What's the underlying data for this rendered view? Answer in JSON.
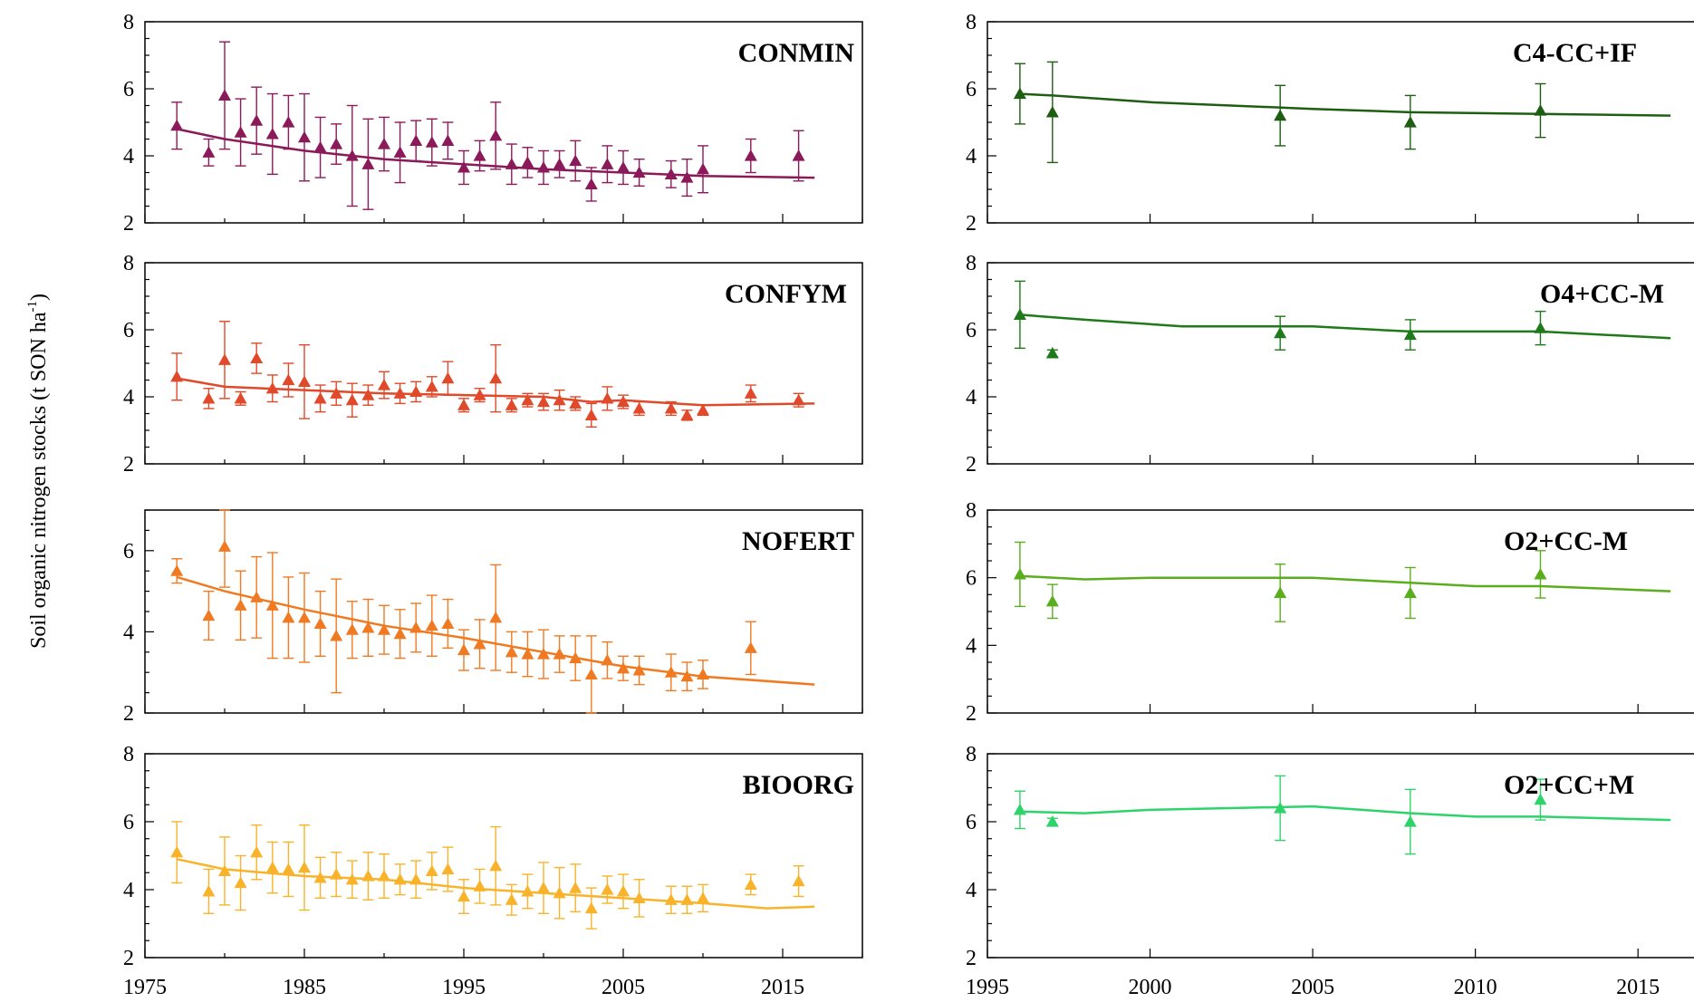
{
  "ylabel": "Soil organic nitrogen stocks (t SON ha",
  "ylabel_sup": "-1",
  "ylabel_close": ")",
  "chart_data": [
    {
      "type": "line",
      "title": "CONMIN",
      "color": "#8b1a5a",
      "xlim": [
        1975,
        2020
      ],
      "ylim": [
        2,
        8
      ],
      "yticks": [
        2,
        4,
        6,
        8
      ],
      "line": {
        "x": [
          1977,
          1980,
          1985,
          1990,
          1995,
          2000,
          2005,
          2010,
          2017
        ],
        "y": [
          4.8,
          4.5,
          4.15,
          3.9,
          3.75,
          3.6,
          3.5,
          3.4,
          3.35
        ]
      },
      "points": {
        "x": [
          1977,
          1979,
          1980,
          1981,
          1982,
          1983,
          1984,
          1985,
          1986,
          1987,
          1988,
          1989,
          1990,
          1991,
          1992,
          1993,
          1994,
          1995,
          1996,
          1997,
          1998,
          1999,
          2000,
          2001,
          2002,
          2003,
          2004,
          2005,
          2006,
          2008,
          2009,
          2010,
          2013,
          2016
        ],
        "y": [
          4.9,
          4.1,
          5.8,
          4.7,
          5.05,
          4.65,
          5.0,
          4.55,
          4.25,
          4.35,
          4.0,
          3.75,
          4.35,
          4.1,
          4.45,
          4.4,
          4.45,
          3.65,
          4.0,
          4.6,
          3.75,
          3.8,
          3.65,
          3.75,
          3.85,
          3.15,
          3.75,
          3.65,
          3.5,
          3.45,
          3.35,
          3.6,
          4.0,
          4.0
        ],
        "err": [
          0.7,
          0.4,
          1.6,
          1.0,
          1.0,
          1.2,
          0.8,
          1.3,
          0.9,
          0.6,
          1.5,
          1.35,
          0.8,
          0.9,
          0.6,
          0.7,
          0.55,
          0.5,
          0.45,
          1.0,
          0.6,
          0.45,
          0.5,
          0.4,
          0.6,
          0.5,
          0.55,
          0.5,
          0.4,
          0.4,
          0.55,
          0.7,
          0.5,
          0.75
        ]
      }
    },
    {
      "type": "line",
      "title": "CONFYM",
      "color": "#e04a2a",
      "xlim": [
        1975,
        2020
      ],
      "ylim": [
        2,
        8
      ],
      "yticks": [
        2,
        4,
        6,
        8
      ],
      "line": {
        "x": [
          1977,
          1980,
          1985,
          1990,
          1995,
          2000,
          2003,
          2005,
          2010,
          2017
        ],
        "y": [
          4.55,
          4.3,
          4.2,
          4.1,
          4.05,
          4.0,
          3.85,
          3.9,
          3.75,
          3.8
        ]
      },
      "points": {
        "x": [
          1977,
          1979,
          1980,
          1981,
          1982,
          1983,
          1984,
          1985,
          1986,
          1987,
          1988,
          1989,
          1990,
          1991,
          1992,
          1993,
          1994,
          1995,
          1996,
          1997,
          1998,
          1999,
          2000,
          2001,
          2002,
          2003,
          2004,
          2005,
          2006,
          2008,
          2009,
          2010,
          2013,
          2016
        ],
        "y": [
          4.6,
          3.95,
          5.1,
          3.95,
          5.15,
          4.25,
          4.5,
          4.45,
          3.95,
          4.1,
          3.9,
          4.05,
          4.35,
          4.1,
          4.15,
          4.3,
          4.55,
          3.75,
          4.05,
          4.55,
          3.75,
          3.9,
          3.85,
          3.9,
          3.8,
          3.45,
          3.95,
          3.85,
          3.65,
          3.65,
          3.45,
          3.6,
          4.1,
          3.9
        ],
        "err": [
          0.7,
          0.3,
          1.15,
          0.2,
          0.45,
          0.4,
          0.5,
          1.1,
          0.4,
          0.35,
          0.5,
          0.3,
          0.4,
          0.3,
          0.3,
          0.3,
          0.5,
          0.2,
          0.2,
          1.0,
          0.2,
          0.2,
          0.25,
          0.3,
          0.2,
          0.35,
          0.35,
          0.2,
          0.2,
          0.2,
          0.15,
          0.15,
          0.25,
          0.2
        ]
      }
    },
    {
      "type": "line",
      "title": "NOFERT",
      "color": "#f07a22",
      "xlim": [
        1975,
        2020
      ],
      "ylim": [
        2,
        7
      ],
      "yticks": [
        2,
        4,
        6
      ],
      "line": {
        "x": [
          1977,
          1980,
          1985,
          1990,
          1995,
          2000,
          2005,
          2010,
          2017
        ],
        "y": [
          5.35,
          5.0,
          4.55,
          4.15,
          3.85,
          3.5,
          3.15,
          2.9,
          2.7
        ]
      },
      "points": {
        "x": [
          1977,
          1979,
          1980,
          1981,
          1982,
          1983,
          1984,
          1985,
          1986,
          1987,
          1988,
          1989,
          1990,
          1991,
          1992,
          1993,
          1994,
          1995,
          1996,
          1997,
          1998,
          1999,
          2000,
          2001,
          2002,
          2003,
          2004,
          2005,
          2006,
          2008,
          2009,
          2010,
          2013
        ],
        "y": [
          5.5,
          4.4,
          6.1,
          4.65,
          4.85,
          4.65,
          4.35,
          4.35,
          4.2,
          3.9,
          4.05,
          4.1,
          4.05,
          3.95,
          4.1,
          4.15,
          4.2,
          3.55,
          3.7,
          4.35,
          3.5,
          3.45,
          3.45,
          3.45,
          3.35,
          2.95,
          3.3,
          3.1,
          3.05,
          3.0,
          2.9,
          2.95,
          3.6
        ],
        "err": [
          0.3,
          0.6,
          1.0,
          0.85,
          1.0,
          1.3,
          1.0,
          1.1,
          0.8,
          1.4,
          0.7,
          0.7,
          0.6,
          0.6,
          0.6,
          0.75,
          0.6,
          0.5,
          0.6,
          1.3,
          0.5,
          0.55,
          0.6,
          0.45,
          0.55,
          0.95,
          0.45,
          0.3,
          0.35,
          0.45,
          0.35,
          0.35,
          0.65
        ]
      }
    },
    {
      "type": "line",
      "title": "BIOORG",
      "color": "#f9b32a",
      "xlim": [
        1975,
        2020
      ],
      "ylim": [
        2,
        8
      ],
      "yticks": [
        2,
        4,
        6,
        8
      ],
      "line": {
        "x": [
          1977,
          1980,
          1985,
          1990,
          1995,
          2000,
          2005,
          2010,
          2014,
          2017
        ],
        "y": [
          4.9,
          4.6,
          4.4,
          4.3,
          4.05,
          3.9,
          3.75,
          3.6,
          3.45,
          3.5
        ]
      },
      "points": {
        "x": [
          1977,
          1979,
          1980,
          1981,
          1982,
          1983,
          1984,
          1985,
          1986,
          1987,
          1988,
          1989,
          1990,
          1991,
          1992,
          1993,
          1994,
          1995,
          1996,
          1997,
          1998,
          1999,
          2000,
          2001,
          2002,
          2003,
          2004,
          2005,
          2006,
          2008,
          2009,
          2010,
          2013,
          2016
        ],
        "y": [
          5.1,
          3.95,
          4.55,
          4.2,
          5.1,
          4.65,
          4.6,
          4.65,
          4.35,
          4.45,
          4.3,
          4.4,
          4.4,
          4.3,
          4.3,
          4.55,
          4.6,
          3.8,
          4.1,
          4.7,
          3.7,
          3.95,
          4.05,
          3.9,
          4.05,
          3.45,
          4.0,
          3.95,
          3.75,
          3.7,
          3.7,
          3.75,
          4.15,
          4.25
        ],
        "err": [
          0.9,
          0.65,
          1.0,
          0.8,
          0.8,
          0.75,
          0.8,
          1.25,
          0.6,
          0.65,
          0.55,
          0.7,
          0.65,
          0.45,
          0.55,
          0.55,
          0.65,
          0.5,
          0.5,
          1.15,
          0.45,
          0.5,
          0.75,
          0.75,
          0.7,
          0.6,
          0.4,
          0.5,
          0.55,
          0.4,
          0.4,
          0.4,
          0.3,
          0.45
        ]
      }
    },
    {
      "type": "line",
      "title": "C4-CC+IF",
      "color": "#1e5e12",
      "xlim": [
        1995,
        2017
      ],
      "ylim": [
        2,
        8
      ],
      "yticks": [
        2,
        4,
        6,
        8
      ],
      "line": {
        "x": [
          1996,
          1997,
          2000,
          2005,
          2008,
          2012,
          2016
        ],
        "y": [
          5.85,
          5.8,
          5.6,
          5.4,
          5.3,
          5.25,
          5.2
        ]
      },
      "points": {
        "x": [
          1996,
          1997,
          2004,
          2008,
          2012
        ],
        "y": [
          5.85,
          5.3,
          5.2,
          5.0,
          5.35
        ],
        "err": [
          0.9,
          1.5,
          0.9,
          0.8,
          0.8
        ]
      }
    },
    {
      "type": "line",
      "title": "O4+CC-M",
      "color": "#1e7a1a",
      "xlim": [
        1995,
        2017
      ],
      "ylim": [
        2,
        8
      ],
      "yticks": [
        2,
        4,
        6,
        8
      ],
      "line": {
        "x": [
          1996,
          1998,
          2001,
          2005,
          2008,
          2012,
          2016
        ],
        "y": [
          6.45,
          6.3,
          6.1,
          6.1,
          5.95,
          5.95,
          5.75
        ]
      },
      "points": {
        "x": [
          1996,
          1997,
          2004,
          2008,
          2012
        ],
        "y": [
          6.45,
          5.3,
          5.9,
          5.85,
          6.05
        ],
        "err": [
          1.0,
          0.1,
          0.5,
          0.45,
          0.5
        ]
      }
    },
    {
      "type": "line",
      "title": "O2+CC-M",
      "color": "#5aae1e",
      "xlim": [
        1995,
        2017
      ],
      "ylim": [
        2,
        8
      ],
      "yticks": [
        2,
        4,
        6,
        8
      ],
      "line": {
        "x": [
          1996,
          1998,
          2000,
          2005,
          2008,
          2010,
          2012,
          2016
        ],
        "y": [
          6.05,
          5.95,
          6.0,
          6.0,
          5.85,
          5.75,
          5.75,
          5.6
        ]
      },
      "points": {
        "x": [
          1996,
          1997,
          2004,
          2008,
          2012
        ],
        "y": [
          6.1,
          5.3,
          5.55,
          5.55,
          6.1
        ],
        "err": [
          0.95,
          0.5,
          0.85,
          0.75,
          0.7
        ]
      }
    },
    {
      "type": "line",
      "title": "O2+CC+M",
      "color": "#2ed46a",
      "xlim": [
        1995,
        2017
      ],
      "ylim": [
        2,
        8
      ],
      "yticks": [
        2,
        4,
        6,
        8
      ],
      "xticks": [
        1995,
        2000,
        2005,
        2010,
        2015
      ],
      "line": {
        "x": [
          1996,
          1998,
          2000,
          2005,
          2008,
          2010,
          2012,
          2016
        ],
        "y": [
          6.3,
          6.25,
          6.35,
          6.45,
          6.25,
          6.15,
          6.15,
          6.05
        ]
      },
      "points": {
        "x": [
          1996,
          1997,
          2004,
          2008,
          2012
        ],
        "y": [
          6.35,
          6.0,
          6.4,
          6.0,
          6.65
        ],
        "err": [
          0.55,
          0.1,
          0.95,
          0.95,
          0.6
        ]
      }
    }
  ],
  "left_xticks": [
    1975,
    1985,
    1995,
    2005,
    2015
  ]
}
